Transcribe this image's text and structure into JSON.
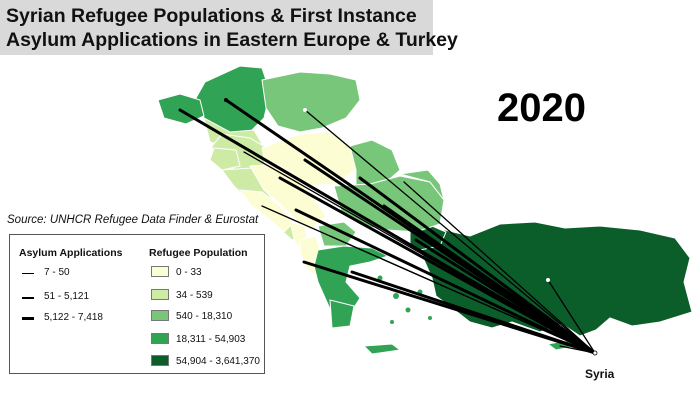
{
  "title": {
    "line1": "Syrian Refugee Populations & First Instance",
    "line2": "Asylum Applications in Eastern Europe & Turkey"
  },
  "year": "2020",
  "source": "Source: UNHCR Refugee Data Finder & Eurostat",
  "destination_label": "Syria",
  "legend": {
    "asylum_title": "Asylum Applications",
    "asylum_classes": [
      {
        "label": "7 - 50",
        "weight": "thin"
      },
      {
        "label": "51 - 5,121",
        "weight": "medium"
      },
      {
        "label": "5,122 - 7,418",
        "weight": "thick"
      }
    ],
    "refugee_title": "Refugee Population",
    "refugee_classes": [
      {
        "label": "0 - 33",
        "color": "#fdfdd4"
      },
      {
        "label": "34 - 539",
        "color": "#cdeba4"
      },
      {
        "label": "540 - 18,310",
        "color": "#78c679"
      },
      {
        "label": "18,311 - 54,903",
        "color": "#31a354"
      },
      {
        "label": "54,904 - 3,641,370",
        "color": "#0b5e2a"
      }
    ]
  },
  "colors": {
    "title_bg": "#d9d9d9",
    "flow_line": "#000000",
    "region_outline": "#ffffff"
  }
}
